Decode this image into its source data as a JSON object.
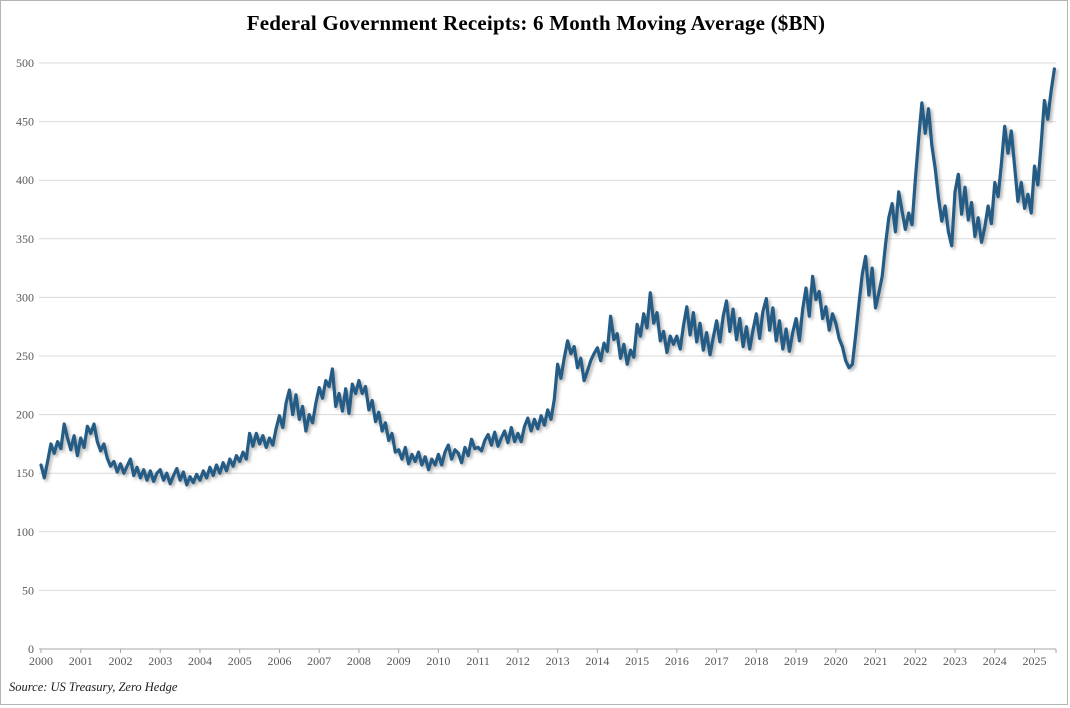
{
  "chart_data": {
    "type": "line",
    "title": "Federal Government Receipts: 6 Month Moving Average ($BN)",
    "source_note": "Source: US Treasury, Zero Hedge",
    "xlabel": "",
    "ylabel": "",
    "x_unit": "month",
    "x_start": "2000-01",
    "x_end": "2025-07",
    "x_tick_labels": [
      "2000",
      "2001",
      "2002",
      "2003",
      "2004",
      "2005",
      "2006",
      "2007",
      "2008",
      "2009",
      "2010",
      "2011",
      "2012",
      "2013",
      "2014",
      "2015",
      "2016",
      "2017",
      "2018",
      "2019",
      "2020",
      "2021",
      "2022",
      "2023",
      "2024",
      "2025"
    ],
    "y_ticks": [
      0,
      50,
      100,
      150,
      200,
      250,
      300,
      350,
      400,
      450,
      500
    ],
    "ylim": [
      0,
      500
    ],
    "grid": true,
    "legend": "none",
    "line_color": "#245C86",
    "grid_color": "#d9d9d9",
    "axis_color": "#a6a6a6",
    "tick_label_color": "#595959",
    "series": [
      {
        "name": "Federal government receipts, 6-month moving average ($BN)",
        "values": [
          157,
          146,
          160,
          175,
          167,
          177,
          171,
          192,
          180,
          170,
          182,
          165,
          180,
          172,
          190,
          184,
          192,
          177,
          169,
          175,
          163,
          156,
          160,
          151,
          158,
          150,
          156,
          162,
          148,
          155,
          146,
          153,
          144,
          152,
          143,
          150,
          153,
          144,
          150,
          141,
          148,
          154,
          144,
          151,
          140,
          147,
          142,
          149,
          144,
          152,
          146,
          155,
          148,
          157,
          150,
          159,
          152,
          162,
          156,
          165,
          160,
          168,
          162,
          184,
          173,
          184,
          175,
          182,
          172,
          180,
          174,
          188,
          199,
          189,
          210,
          221,
          200,
          217,
          196,
          207,
          186,
          200,
          193,
          210,
          223,
          214,
          229,
          224,
          239,
          207,
          218,
          203,
          222,
          201,
          226,
          218,
          229,
          218,
          224,
          204,
          212,
          194,
          202,
          186,
          193,
          178,
          184,
          168,
          170,
          162,
          172,
          158,
          166,
          160,
          168,
          157,
          164,
          153,
          162,
          157,
          166,
          157,
          168,
          174,
          162,
          170,
          167,
          159,
          172,
          165,
          179,
          171,
          172,
          169,
          178,
          183,
          174,
          185,
          173,
          180,
          186,
          176,
          189,
          177,
          184,
          177,
          190,
          197,
          186,
          196,
          188,
          199,
          191,
          204,
          196,
          213,
          243,
          231,
          248,
          263,
          252,
          258,
          240,
          248,
          229,
          237,
          246,
          252,
          257,
          246,
          261,
          254,
          284,
          264,
          269,
          248,
          260,
          243,
          255,
          249,
          277,
          267,
          286,
          274,
          304,
          278,
          287,
          263,
          271,
          253,
          267,
          260,
          267,
          256,
          276,
          292,
          268,
          287,
          262,
          278,
          255,
          270,
          251,
          266,
          280,
          262,
          284,
          297,
          271,
          290,
          264,
          282,
          258,
          275,
          256,
          272,
          286,
          265,
          288,
          299,
          272,
          291,
          263,
          280,
          256,
          273,
          254,
          270,
          282,
          263,
          290,
          308,
          284,
          318,
          298,
          305,
          282,
          292,
          272,
          286,
          278,
          265,
          258,
          246,
          240,
          243,
          268,
          295,
          320,
          335,
          302,
          325,
          291,
          304,
          318,
          345,
          368,
          380,
          356,
          390,
          374,
          358,
          372,
          362,
          400,
          435,
          466,
          440,
          461,
          430,
          410,
          385,
          365,
          378,
          356,
          344,
          390,
          405,
          371,
          394,
          366,
          381,
          352,
          368,
          347,
          360,
          378,
          363,
          398,
          386,
          414,
          446,
          423,
          442,
          412,
          382,
          398,
          376,
          388,
          372,
          412,
          396,
          430,
          468,
          452,
          476,
          495
        ]
      }
    ]
  }
}
